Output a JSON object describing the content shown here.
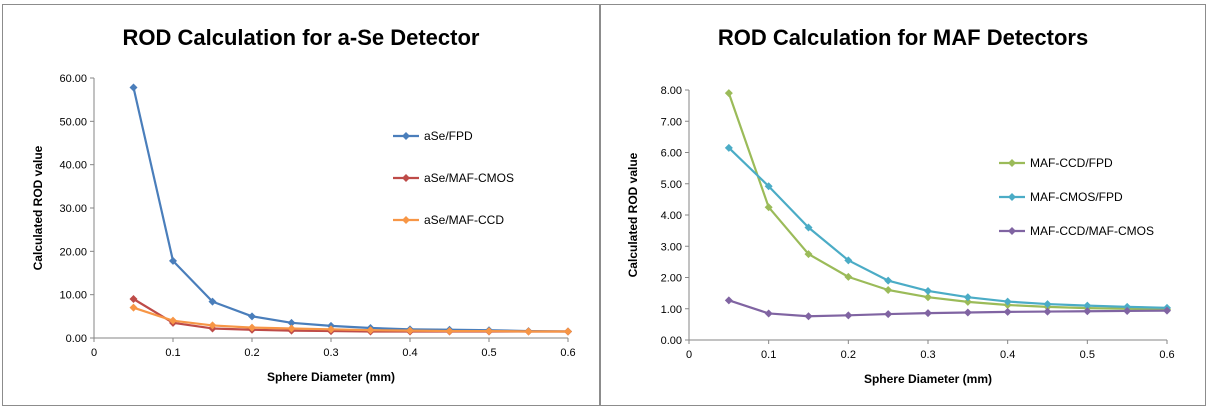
{
  "chart_data": [
    {
      "type": "line",
      "title": "ROD Calculation for a-Se  Detector",
      "xlabel": "Sphere Diameter (mm)",
      "ylabel": "Calculated  ROD value",
      "xlim": [
        0,
        0.6
      ],
      "ylim": [
        0,
        60
      ],
      "x_ticks": [
        "0",
        "0.1",
        "0.2",
        "0.3",
        "0.4",
        "0.5",
        "0.6"
      ],
      "y_ticks": [
        "0.00",
        "10.00",
        "20.00",
        "30.00",
        "40.00",
        "50.00",
        "60.00"
      ],
      "grid": false,
      "legend_position": "right",
      "x": [
        0.05,
        0.1,
        0.15,
        0.2,
        0.25,
        0.3,
        0.35,
        0.4,
        0.45,
        0.5,
        0.55,
        0.6
      ],
      "series": [
        {
          "name": "aSe/FPD",
          "color": "#4a7ebb",
          "marker": "diamond",
          "values": [
            57.8,
            17.8,
            8.4,
            5.0,
            3.5,
            2.8,
            2.3,
            2.0,
            1.9,
            1.8,
            1.6,
            1.5
          ]
        },
        {
          "name": "aSe/MAF-CMOS",
          "color": "#be4b48",
          "marker": "diamond",
          "values": [
            9.0,
            3.5,
            2.2,
            1.9,
            1.7,
            1.6,
            1.5,
            1.5,
            1.5,
            1.5,
            1.5,
            1.5
          ]
        },
        {
          "name": "aSe/MAF-CCD",
          "color": "#f79646",
          "marker": "diamond",
          "values": [
            7.0,
            4.0,
            2.9,
            2.4,
            2.2,
            2.0,
            1.8,
            1.7,
            1.6,
            1.6,
            1.5,
            1.5
          ]
        }
      ]
    },
    {
      "type": "line",
      "title": "ROD Calculation for MAF Detectors",
      "xlabel": "Sphere Diameter (mm)",
      "ylabel": "Calculated  ROD value",
      "xlim": [
        0,
        0.6
      ],
      "ylim": [
        0,
        8
      ],
      "x_ticks": [
        "0",
        "0.1",
        "0.2",
        "0.3",
        "0.4",
        "0.5",
        "0.6"
      ],
      "y_ticks": [
        "0.00",
        "1.00",
        "2.00",
        "3.00",
        "4.00",
        "5.00",
        "6.00",
        "7.00",
        "8.00"
      ],
      "grid": false,
      "legend_position": "right",
      "x": [
        0.05,
        0.1,
        0.15,
        0.2,
        0.25,
        0.3,
        0.35,
        0.4,
        0.45,
        0.5,
        0.55,
        0.6
      ],
      "series": [
        {
          "name": "MAF-CCD/FPD",
          "color": "#9bbb59",
          "marker": "diamond",
          "values": [
            7.9,
            4.25,
            2.75,
            2.02,
            1.6,
            1.37,
            1.22,
            1.12,
            1.06,
            1.02,
            1.0,
            0.98
          ]
        },
        {
          "name": "MAF-CMOS/FPD",
          "color": "#4bacc6",
          "marker": "diamond",
          "values": [
            6.15,
            4.92,
            3.6,
            2.55,
            1.9,
            1.57,
            1.37,
            1.23,
            1.15,
            1.1,
            1.06,
            1.03
          ]
        },
        {
          "name": "MAF-CCD/MAF-CMOS",
          "color": "#8064a2",
          "marker": "diamond",
          "values": [
            1.27,
            0.85,
            0.76,
            0.79,
            0.83,
            0.86,
            0.88,
            0.9,
            0.91,
            0.92,
            0.93,
            0.94
          ]
        }
      ]
    }
  ]
}
